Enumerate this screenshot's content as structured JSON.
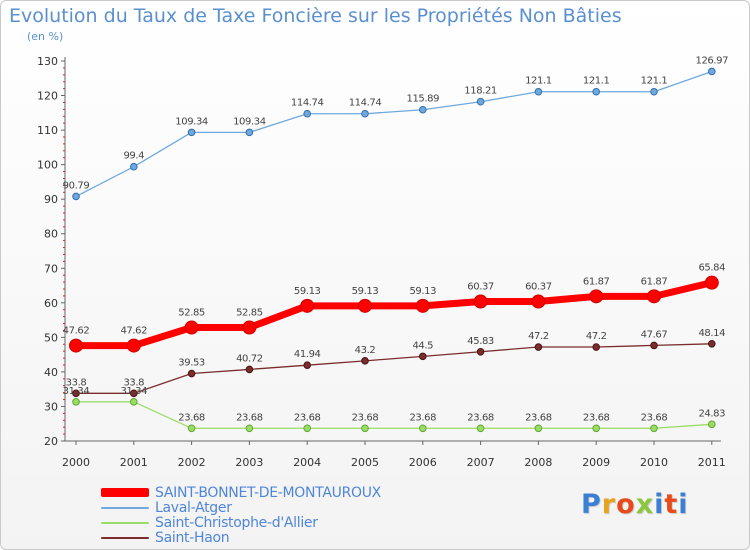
{
  "title": "Evolution du Taux de Taxe Foncière sur les Propriétés Non Bâties",
  "subtitle": "(en %)",
  "logo": "Proxiti",
  "chart_data": {
    "type": "line",
    "title": "Evolution du Taux de Taxe Foncière sur les Propriétés Non Bâties",
    "ylabel": "(en %)",
    "xlabel": "",
    "ylim": [
      20,
      130
    ],
    "yticks": [
      20,
      30,
      40,
      50,
      60,
      70,
      80,
      90,
      100,
      110,
      120,
      130
    ],
    "grid": false,
    "legend_position": "bottom",
    "categories": [
      "2000",
      "2001",
      "2002",
      "2003",
      "2004",
      "2005",
      "2006",
      "2007",
      "2008",
      "2009",
      "2010",
      "2011"
    ],
    "series": [
      {
        "name": "SAINT-BONNET-DE-MONTAUROUX",
        "color": "#ff0000",
        "values": [
          47.62,
          47.62,
          52.85,
          52.85,
          59.13,
          59.13,
          59.13,
          60.37,
          60.37,
          61.87,
          61.87,
          65.84
        ],
        "labels": [
          "47.62",
          "47.62",
          "52.85",
          "52.85",
          "59.13",
          "59.13",
          "59.13",
          "60.37",
          "60.37",
          "61.87",
          "61.87",
          "65.84"
        ]
      },
      {
        "name": "Laval-Atger",
        "color": "#6fa8dc",
        "values": [
          90.79,
          99.4,
          109.34,
          109.34,
          114.74,
          114.74,
          115.89,
          118.21,
          121.1,
          121.1,
          121.1,
          126.97
        ],
        "labels": [
          "90.79",
          "99.4",
          "109.34",
          "109.34",
          "114.74",
          "114.74",
          "115.89",
          "118.21",
          "121.1",
          "121.1",
          "121.1",
          "126.97"
        ]
      },
      {
        "name": "Saint-Christophe-d'Allier",
        "color": "#99dd66",
        "values": [
          31.34,
          31.34,
          23.68,
          23.68,
          23.68,
          23.68,
          23.68,
          23.68,
          23.68,
          23.68,
          23.68,
          24.83
        ],
        "labels": [
          "31.34",
          "31.34",
          "23.68",
          "23.68",
          "23.68",
          "23.68",
          "23.68",
          "23.68",
          "23.68",
          "23.68",
          "23.68",
          "24.83"
        ]
      },
      {
        "name": "Saint-Haon",
        "color": "#7b2d2d",
        "values": [
          33.8,
          33.8,
          39.53,
          40.72,
          41.94,
          43.2,
          44.5,
          45.83,
          47.2,
          47.2,
          47.67,
          48.14
        ],
        "labels": [
          "33.8",
          "33.8",
          "39.53",
          "40.72",
          "41.94",
          "43.2",
          "44.5",
          "45.83",
          "47.2",
          "47.2",
          "47.67",
          "48.14"
        ]
      }
    ]
  }
}
